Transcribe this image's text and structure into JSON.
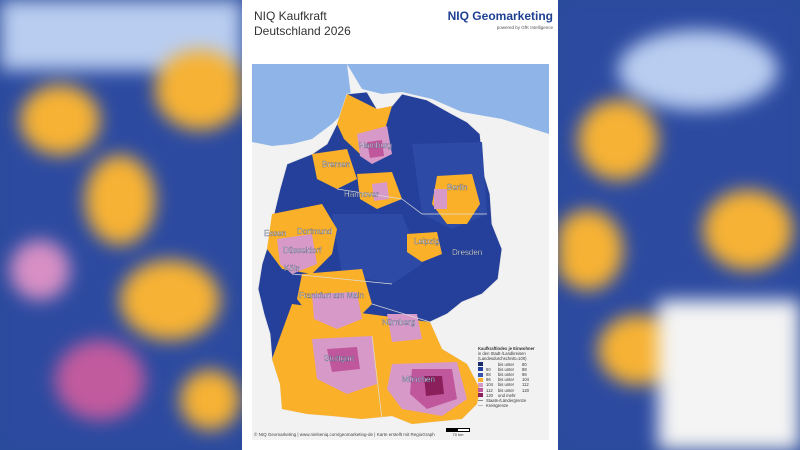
{
  "title": {
    "line1": "NIQ Kaufkraft",
    "line2": "Deutschland 2026"
  },
  "brand": {
    "name": "NIQ Geomarketing",
    "sub": "powered by GfK Intelligence"
  },
  "cities": [
    "Hamburg",
    "Bremen",
    "Hannover",
    "Berlin",
    "Essen",
    "Dortmund",
    "Düsseldorf",
    "Köln",
    "Leipzig",
    "Dresden",
    "Frankfurt am Main",
    "Nürnberg",
    "Stuttgart",
    "München"
  ],
  "legend": {
    "title": "Kaufkraftindex je Einwohner",
    "subtitle1": "in den Stadt-/Landkreisen",
    "subtitle2": "(Landesdurchschnitt=100)",
    "rows": [
      {
        "from": "",
        "sep": "bis unter",
        "to": "80",
        "color": "#1b2a6b"
      },
      {
        "from": "80",
        "sep": "bis unter",
        "to": "88",
        "color": "#25409a"
      },
      {
        "from": "88",
        "sep": "bis unter",
        "to": "96",
        "color": "#3355b0"
      },
      {
        "from": "96",
        "sep": "bis unter",
        "to": "104",
        "color": "#fbb02a"
      },
      {
        "from": "104",
        "sep": "bis unter",
        "to": "112",
        "color": "#d79ac8"
      },
      {
        "from": "112",
        "sep": "bis unter",
        "to": "120",
        "color": "#c0579c"
      },
      {
        "from": "120",
        "sep": "und mehr",
        "to": "",
        "color": "#8a1f5c"
      }
    ],
    "border_state": "Staats-/Ländergrenze",
    "border_district": "Kreisgrenze"
  },
  "scale_label": "70 km",
  "footer": "© NIQ Geomarketing | www.nielseniq.com/geomarketing-de | Karte erstellt mit RegioGraph",
  "colors": {
    "sea": "#8fb5e8",
    "land_dark": "#25409a",
    "land_mid": "#3355b0",
    "orange": "#fbb02a",
    "pink": "#d79ac8",
    "magenta": "#c0579c"
  }
}
